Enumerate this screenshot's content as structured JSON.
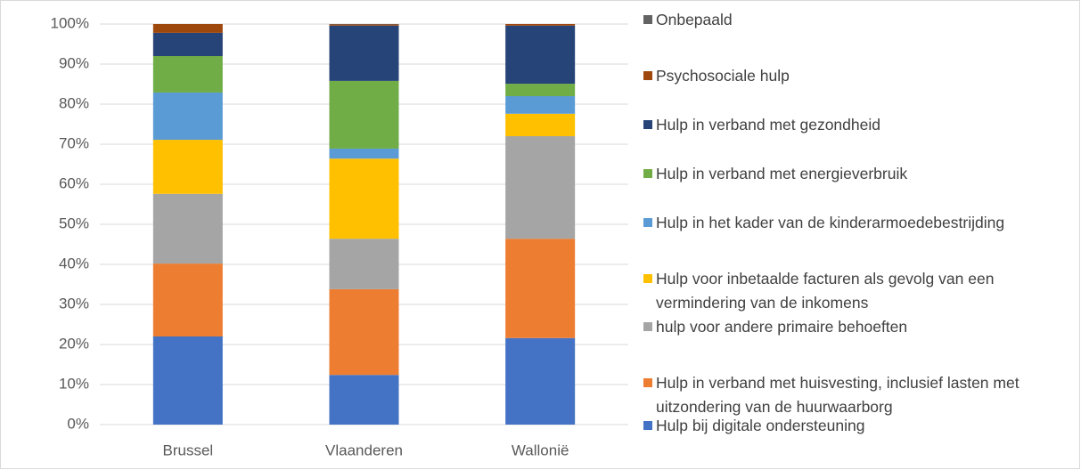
{
  "chart_data": {
    "type": "stacked_bar",
    "categories": [
      "Brussel",
      "Vlaanderen",
      "Wallonië"
    ],
    "series": [
      {
        "name": "Hulp bij digitale ondersteuning",
        "color": "#4472c4",
        "values": [
          22,
          12.4,
          21.6
        ]
      },
      {
        "name": "Hulp in verband met huisvesting, inclusief lasten met uitzondering van de huurwaarborg",
        "color": "#ed7d31",
        "values": [
          18.2,
          21.4,
          24.8
        ]
      },
      {
        "name": "hulp voor andere primaire behoeften",
        "color": "#a5a5a5",
        "values": [
          17.4,
          12.6,
          25.6
        ]
      },
      {
        "name": "Hulp voor inbetaalde facturen als gevolg van een vermindering van de inkomens",
        "color": "#ffc000",
        "values": [
          13.5,
          20,
          5.6
        ]
      },
      {
        "name": "Hulp in het kader van de kinderarmoedebestrijding",
        "color": "#5b9bd5",
        "values": [
          11.8,
          2.5,
          4.4
        ]
      },
      {
        "name": "Hulp in verband met energieverbruik",
        "color": "#70ad47",
        "values": [
          9.1,
          16.9,
          3.1
        ]
      },
      {
        "name": "Hulp in verband met gezondheid",
        "color": "#264478",
        "values": [
          5.8,
          13.8,
          14.5
        ]
      },
      {
        "name": "Psychosociale hulp",
        "color": "#9e480e",
        "values": [
          2.2,
          0.3,
          0.4
        ]
      },
      {
        "name": "Onbepaald",
        "color": "#636363",
        "values": [
          0,
          0.1,
          0
        ]
      }
    ],
    "ylim": [
      0,
      100
    ],
    "yticks": [
      {
        "value": 0,
        "label": "0%"
      },
      {
        "value": 10,
        "label": "10%"
      },
      {
        "value": 20,
        "label": "20%"
      },
      {
        "value": 30,
        "label": "30%"
      },
      {
        "value": 40,
        "label": "40%"
      },
      {
        "value": 50,
        "label": "50%"
      },
      {
        "value": 60,
        "label": "60%"
      },
      {
        "value": 70,
        "label": "70%"
      },
      {
        "value": 80,
        "label": "80%"
      },
      {
        "value": 90,
        "label": "90%"
      },
      {
        "value": 100,
        "label": "100%"
      }
    ],
    "grid": true
  }
}
